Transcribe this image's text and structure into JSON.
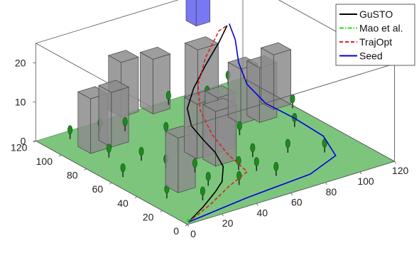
{
  "chart_data": {
    "type": "line",
    "subtype": "3d-trajectory-plot",
    "title": "",
    "xlabel": "",
    "ylabel": "",
    "zlabel": "",
    "xlim": [
      0,
      120
    ],
    "ylim": [
      0,
      120
    ],
    "zlim": [
      0,
      25
    ],
    "x_ticks": [
      "0",
      "20",
      "40",
      "60",
      "80",
      "100",
      "120"
    ],
    "y_ticks": [
      "0",
      "20",
      "40",
      "60",
      "80",
      "100",
      "120"
    ],
    "z_ticks": [
      "0",
      "10",
      "20"
    ],
    "grid": false,
    "legend_position": "top-right",
    "colors": {
      "ground": "#7dc57d",
      "obstacle": "#8c8c8c",
      "goal_region": "#4b4bf0",
      "tree_trunk": "#2b2b2b",
      "tree_canopy": "#1e8a1e",
      "start_marker": "#00e000"
    },
    "series": [
      {
        "name": "GuSTO",
        "color": "#000000",
        "line_style": "solid",
        "points": [
          [
            2,
            2,
            0
          ],
          [
            18,
            12,
            0
          ],
          [
            32,
            22,
            0
          ],
          [
            42,
            30,
            0
          ],
          [
            50,
            40,
            1
          ],
          [
            54,
            52,
            2
          ],
          [
            55,
            62,
            3
          ],
          [
            55,
            72,
            5
          ],
          [
            60,
            82,
            7
          ],
          [
            68,
            88,
            10
          ],
          [
            78,
            92,
            14
          ],
          [
            88,
            95,
            18
          ],
          [
            94,
            97,
            21
          ]
        ]
      },
      {
        "name": "Mao et al.",
        "color": "#1ee01e",
        "line_style": "dash-dot",
        "points": [
          [
            2,
            2,
            0
          ],
          [
            8,
            5,
            0
          ],
          [
            14,
            9,
            0
          ]
        ]
      },
      {
        "name": "TrajOpt",
        "color": "#e02020",
        "line_style": "dashed",
        "points": [
          [
            2,
            2,
            0
          ],
          [
            22,
            12,
            0
          ],
          [
            42,
            24,
            0
          ],
          [
            58,
            32,
            0
          ],
          [
            60,
            50,
            1
          ],
          [
            62,
            65,
            3
          ],
          [
            66,
            80,
            6
          ],
          [
            72,
            90,
            10
          ],
          [
            80,
            95,
            15
          ],
          [
            90,
            98,
            20
          ],
          [
            94,
            97,
            21
          ]
        ]
      },
      {
        "name": "Seed",
        "color": "#0000e0",
        "line_style": "solid",
        "points": [
          [
            2,
            2,
            0
          ],
          [
            40,
            8,
            0
          ],
          [
            80,
            12,
            0
          ],
          [
            102,
            22,
            0
          ],
          [
            108,
            40,
            1
          ],
          [
            104,
            58,
            3
          ],
          [
            98,
            72,
            5
          ],
          [
            96,
            84,
            8
          ],
          [
            97,
            92,
            12
          ],
          [
            98,
            96,
            17
          ],
          [
            96,
            98,
            21
          ]
        ]
      }
    ],
    "obstacles": [
      {
        "x": 18,
        "y": 32,
        "w": 10,
        "d": 10,
        "h": 14
      },
      {
        "x": 12,
        "y": 93,
        "w": 10,
        "d": 10,
        "h": 14
      },
      {
        "x": 24,
        "y": 93,
        "w": 10,
        "d": 10,
        "h": 14
      },
      {
        "x": 50,
        "y": 46,
        "w": 12,
        "d": 10,
        "h": 14
      },
      {
        "x": 48,
        "y": 58,
        "w": 12,
        "d": 10,
        "h": 14
      },
      {
        "x": 60,
        "y": 58,
        "w": 10,
        "d": 10,
        "h": 14
      },
      {
        "x": 48,
        "y": 118,
        "w": 10,
        "d": 10,
        "h": 14
      },
      {
        "x": 62,
        "y": 112,
        "w": 10,
        "d": 10,
        "h": 14
      },
      {
        "x": 85,
        "y": 108,
        "w": 12,
        "d": 10,
        "h": 14
      },
      {
        "x": 88,
        "y": 78,
        "w": 10,
        "d": 10,
        "h": 14
      },
      {
        "x": 96,
        "y": 74,
        "w": 10,
        "d": 10,
        "h": 14
      },
      {
        "x": 110,
        "y": 82,
        "w": 10,
        "d": 10,
        "h": 14
      }
    ],
    "goal_region": {
      "x": 90,
      "y": 116,
      "w": 8,
      "d": 8,
      "z0": 18,
      "h": 11
    },
    "trees": [
      [
        8,
        62
      ],
      [
        10,
        30
      ],
      [
        16,
        84
      ],
      [
        14,
        112
      ],
      [
        22,
        18
      ],
      [
        26,
        72
      ],
      [
        30,
        58
      ],
      [
        34,
        30
      ],
      [
        38,
        46
      ],
      [
        40,
        104
      ],
      [
        46,
        22
      ],
      [
        52,
        88
      ],
      [
        56,
        36
      ],
      [
        62,
        30
      ],
      [
        66,
        20
      ],
      [
        68,
        74
      ],
      [
        70,
        44
      ],
      [
        74,
        116
      ],
      [
        80,
        68
      ],
      [
        82,
        98
      ],
      [
        86,
        38
      ],
      [
        92,
        110
      ],
      [
        100,
        28
      ],
      [
        106,
        60
      ],
      [
        110,
        118
      ],
      [
        118,
        78
      ],
      [
        30,
        110
      ]
    ]
  }
}
